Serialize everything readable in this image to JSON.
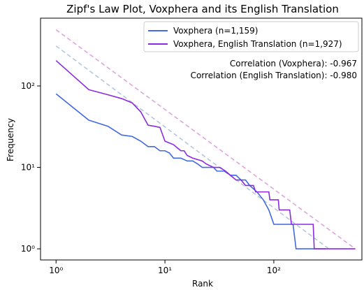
{
  "chart_data": {
    "type": "line",
    "title": "Zipf's Law Plot, Voxphera and its English Translation",
    "xlabel": "Rank",
    "ylabel": "Frequency",
    "log_x": true,
    "log_y": true,
    "xlim": [
      0.72,
      644
    ],
    "ylim": [
      0.73,
      680
    ],
    "xticks": [
      {
        "value": 1,
        "label": "10⁰"
      },
      {
        "value": 10,
        "label": "10¹"
      },
      {
        "value": 100,
        "label": "10²"
      }
    ],
    "yticks": [
      {
        "value": 1,
        "label": "10⁰"
      },
      {
        "value": 10,
        "label": "10¹"
      },
      {
        "value": 100,
        "label": "10²"
      }
    ],
    "legend": "upper right",
    "series": [
      {
        "name": "Voxphera (n=1,159)",
        "color": "#4169e1",
        "x": [
          1,
          2,
          3,
          4,
          5,
          6,
          7,
          8,
          9,
          10,
          11,
          12,
          14,
          16,
          18,
          20,
          22,
          28,
          30,
          35,
          40,
          45,
          50,
          55,
          60,
          70,
          80,
          90,
          100,
          150,
          160,
          300
        ],
        "values": [
          80,
          38,
          32,
          25,
          24,
          21,
          18,
          18,
          16,
          16,
          15,
          13,
          13,
          12,
          12,
          11,
          10,
          10,
          9,
          9,
          8,
          8,
          7,
          7,
          6,
          5,
          4,
          3,
          2,
          2,
          1,
          1
        ]
      },
      {
        "name": "Voxphera, English Translation (n=1,927)",
        "color": "#8a2be2",
        "x": [
          1,
          2,
          3,
          4,
          5,
          6,
          7,
          8,
          9,
          10,
          12,
          14,
          15,
          16,
          18,
          22,
          24,
          28,
          32,
          36,
          40,
          45,
          50,
          55,
          65,
          68,
          90,
          92,
          110,
          112,
          140,
          145,
          230,
          235,
          560
        ],
        "values": [
          205,
          90,
          78,
          70,
          62,
          48,
          33,
          32,
          31,
          21,
          19,
          16,
          16,
          14,
          13,
          12,
          11,
          10,
          10,
          9,
          8,
          7,
          7,
          6,
          6,
          5,
          5,
          4,
          4,
          3,
          3,
          2,
          2,
          1,
          1
        ]
      }
    ],
    "reference_lines": [
      {
        "color": "#b0c4de",
        "x": [
          1,
          320
        ],
        "values": [
          310,
          1
        ]
      },
      {
        "color": "#dda0dd",
        "x": [
          1,
          560
        ],
        "values": [
          490,
          1
        ]
      }
    ],
    "annotations": [
      "Correlation (Voxphera): -0.967",
      "Correlation (English Translation): -0.980"
    ]
  }
}
